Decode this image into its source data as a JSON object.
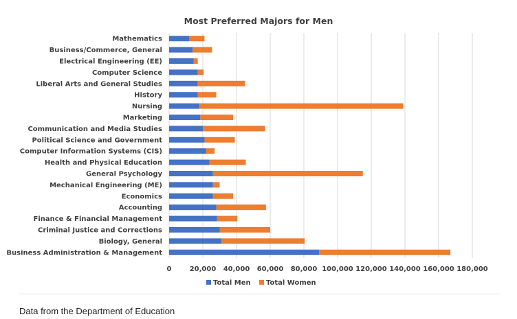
{
  "caption": "Data from the Department of Education",
  "chart_data": {
    "type": "bar",
    "orientation": "horizontal",
    "stacked": true,
    "title": "Most Preferred Majors for Men",
    "categories": [
      "Mathematics",
      "Business/Commerce, General",
      "Electrical Engineering (EE)",
      "Computer Science",
      "Liberal Arts and General Studies",
      "History",
      "Nursing",
      "Marketing",
      "Communication and Media Studies",
      "Political Science and Government",
      "Computer Information Systems (CIS)",
      "Health and Physical Education",
      "General Psychology",
      "Mechanical Engineering (ME)",
      "Economics",
      "Accounting",
      "Finance & Financial Management",
      "Criminal Justice and Corrections",
      "Biology, General",
      "Business Administration & Management"
    ],
    "series": [
      {
        "name": "Total Men",
        "color": "#4472c4",
        "values": [
          12000,
          14000,
          14500,
          17000,
          17000,
          17000,
          18000,
          18500,
          20000,
          21000,
          22000,
          24000,
          26000,
          26000,
          26000,
          28000,
          28500,
          30000,
          31000,
          89000
        ]
      },
      {
        "name": "Total Women",
        "color": "#ed7d31",
        "values": [
          9000,
          11500,
          2500,
          3500,
          28000,
          11000,
          121000,
          19500,
          37000,
          18000,
          5000,
          21500,
          89000,
          4000,
          12000,
          29500,
          12000,
          30000,
          49500,
          78000
        ]
      }
    ],
    "x_ticks": [
      "0",
      "20,000",
      "40,000",
      "60,000",
      "80,000",
      "100,000",
      "120,000",
      "140,000",
      "160,000",
      "180,000"
    ],
    "xlim": [
      0,
      180000
    ],
    "grid": true,
    "legend": "bottom"
  }
}
